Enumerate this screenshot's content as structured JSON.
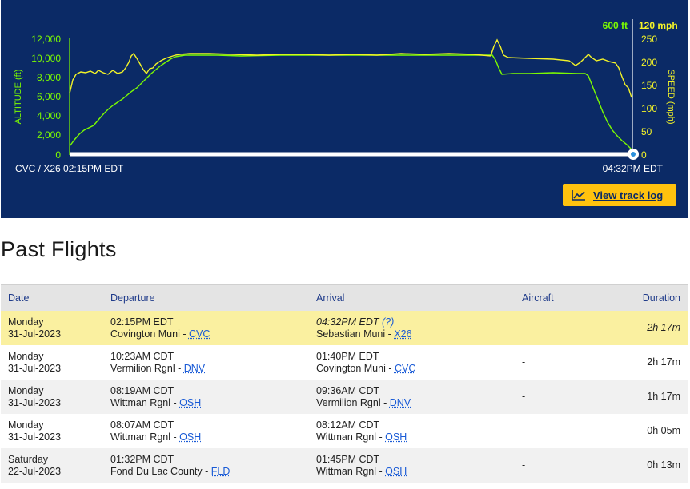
{
  "chart": {
    "left_axis_label": "ALTITUDE (ft)",
    "right_axis_label": "SPEED (mph)",
    "left_ticks": [
      "12,000",
      "10,000",
      "8,000",
      "6,000",
      "4,000",
      "2,000",
      "0"
    ],
    "right_ticks": [
      "250",
      "200",
      "150",
      "100",
      "50",
      "0"
    ],
    "current_altitude": "600 ft",
    "current_speed": "120 mph",
    "start_label": "CVC / X26 02:15PM EDT",
    "end_label": "04:32PM EDT",
    "altitude_color": "#7CFC00",
    "speed_color": "#f3f328",
    "background_color": "#0b2a66"
  },
  "track_log_button": {
    "label": "View track log",
    "icon": "line-chart-icon"
  },
  "section_title": "Past Flights",
  "table": {
    "headers": {
      "date": "Date",
      "departure": "Departure",
      "arrival": "Arrival",
      "aircraft": "Aircraft",
      "duration": "Duration"
    },
    "rows": [
      {
        "day": "Monday",
        "date": "31-Jul-2023",
        "dep_time": "02:15PM EDT",
        "dep_airport": "Covington Muni",
        "dep_code": "CVC",
        "arr_time": "04:32PM EDT",
        "arr_note": "(?)",
        "arr_airport": "Sebastian Muni",
        "arr_code": "X26",
        "aircraft": "-",
        "duration": "2h 17m"
      },
      {
        "day": "Monday",
        "date": "31-Jul-2023",
        "dep_time": "10:23AM CDT",
        "dep_airport": "Vermilion Rgnl",
        "dep_code": "DNV",
        "arr_time": "01:40PM EDT",
        "arr_note": "",
        "arr_airport": "Covington Muni",
        "arr_code": "CVC",
        "aircraft": "-",
        "duration": "2h 17m"
      },
      {
        "day": "Monday",
        "date": "31-Jul-2023",
        "dep_time": "08:19AM CDT",
        "dep_airport": "Wittman Rgnl",
        "dep_code": "OSH",
        "arr_time": "09:36AM CDT",
        "arr_note": "",
        "arr_airport": "Vermilion Rgnl",
        "arr_code": "DNV",
        "aircraft": "-",
        "duration": "1h 17m"
      },
      {
        "day": "Monday",
        "date": "31-Jul-2023",
        "dep_time": "08:07AM CDT",
        "dep_airport": "Wittman Rgnl",
        "dep_code": "OSH",
        "arr_time": "08:12AM CDT",
        "arr_note": "",
        "arr_airport": "Wittman Rgnl",
        "arr_code": "OSH",
        "aircraft": "-",
        "duration": "0h 05m"
      },
      {
        "day": "Saturday",
        "date": "22-Jul-2023",
        "dep_time": "01:32PM CDT",
        "dep_airport": "Fond Du Lac County",
        "dep_code": "FLD",
        "arr_time": "01:45PM CDT",
        "arr_note": "",
        "arr_airport": "Wittman Rgnl",
        "arr_code": "OSH",
        "aircraft": "-",
        "duration": "0h 13m"
      }
    ]
  }
}
